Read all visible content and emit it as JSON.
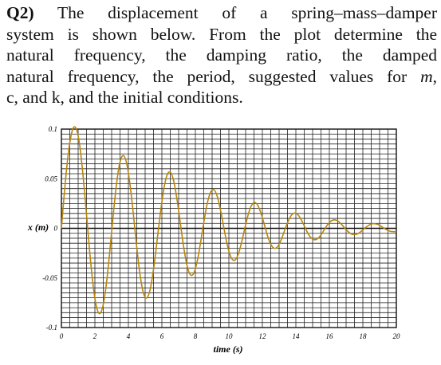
{
  "question": {
    "number": "Q2)",
    "lines": [
      "The displacement of a spring–mass–damper",
      "system is shown below. From the plot determine the",
      "natural frequency, the damping ratio, the damped",
      "natural frequency, the period, suggested values for ",
      "c, and k, and the initial conditions."
    ],
    "var_m": "m",
    "trail": ","
  },
  "chart_data": {
    "type": "line",
    "xlabel": "time (s)",
    "ylabel": "x (m)",
    "xlim": [
      0,
      20
    ],
    "ylim": [
      -0.1,
      0.1
    ],
    "x_ticks": [
      "0",
      "2",
      "4",
      "6",
      "8",
      "10",
      "12",
      "14",
      "16",
      "18",
      "20"
    ],
    "y_ticks": [
      "0.1",
      "0.05",
      "0",
      "-0.05",
      "-0.1"
    ],
    "grid": true,
    "line_color": "#b8860b",
    "series": [
      {
        "name": "",
        "x": [
          0,
          0.1,
          0.3,
          0.5,
          0.7,
          0.9,
          1.1,
          1.3,
          1.5,
          1.7,
          1.9,
          2.1,
          2.3,
          2.5,
          2.7,
          2.9,
          3.1,
          3.3,
          3.5,
          3.7,
          3.9,
          4.1,
          4.3,
          4.5,
          4.7,
          4.9,
          5.1,
          5.3,
          5.5,
          5.7,
          5.9,
          6.1,
          6.3,
          6.5,
          6.7,
          6.9,
          7.1,
          7.3,
          7.5,
          7.7,
          7.9,
          8.1,
          8.3,
          8.5,
          8.7,
          8.9,
          9.1,
          9.3,
          9.5,
          9.7,
          9.9,
          10.1,
          10.3,
          10.5,
          10.7,
          10.9,
          11.1,
          11.3,
          11.5,
          11.7,
          11.9,
          12.1,
          12.3,
          12.5,
          12.7,
          12.9,
          13.1,
          13.3,
          13.5,
          13.7,
          13.9,
          14.1,
          14.3,
          14.5,
          14.7,
          14.9,
          15.1,
          15.3,
          15.5,
          15.7,
          15.9,
          16.1,
          16.3,
          16.5,
          16.7,
          16.9,
          17.1,
          17.3,
          17.5,
          17.7,
          17.9,
          18.1,
          18.3,
          18.5,
          18.7,
          18.9,
          19.1,
          19.3,
          19.5,
          19.7,
          19.9,
          20
        ],
        "y": [
          0.0,
          0.0207,
          0.0582,
          0.0861,
          0.1008,
          0.0998,
          0.0827,
          0.0518,
          0.0138,
          -0.0255,
          -0.0583,
          -0.0796,
          -0.0859,
          -0.0767,
          -0.0538,
          -0.0214,
          0.0143,
          0.0459,
          0.0669,
          0.0733,
          0.0652,
          0.0437,
          0.0136,
          -0.0191,
          -0.0473,
          -0.0653,
          -0.0701,
          -0.0615,
          -0.0414,
          -0.0143,
          0.0139,
          0.0381,
          0.0533,
          0.0566,
          0.0481,
          0.0295,
          0.0054,
          -0.0187,
          -0.0374,
          -0.0468,
          -0.0454,
          -0.034,
          -0.0154,
          0.0058,
          0.0244,
          0.0361,
          0.0389,
          0.0325,
          0.0184,
          0.0006,
          -0.0163,
          -0.0282,
          -0.0324,
          -0.0286,
          -0.0182,
          -0.0039,
          0.0105,
          0.0212,
          0.0259,
          0.0239,
          0.0161,
          0.0048,
          -0.0071,
          -0.0161,
          -0.0201,
          -0.0187,
          -0.0125,
          -0.0034,
          0.0056,
          0.0124,
          0.0153,
          0.0141,
          0.0093,
          0.0025,
          -0.0044,
          -0.0095,
          -0.0115,
          -0.0104,
          -0.0066,
          -0.0013,
          0.0038,
          0.0074,
          0.0086,
          0.0075,
          0.0045,
          0.0006,
          -0.003,
          -0.0056,
          -0.0063,
          -0.0054,
          -0.003,
          -0.0001,
          0.0025,
          0.0043,
          0.0047,
          0.0039,
          0.002,
          -0.0003,
          -0.0021,
          -0.0032,
          -0.0034,
          -0.0033
        ]
      }
    ]
  }
}
